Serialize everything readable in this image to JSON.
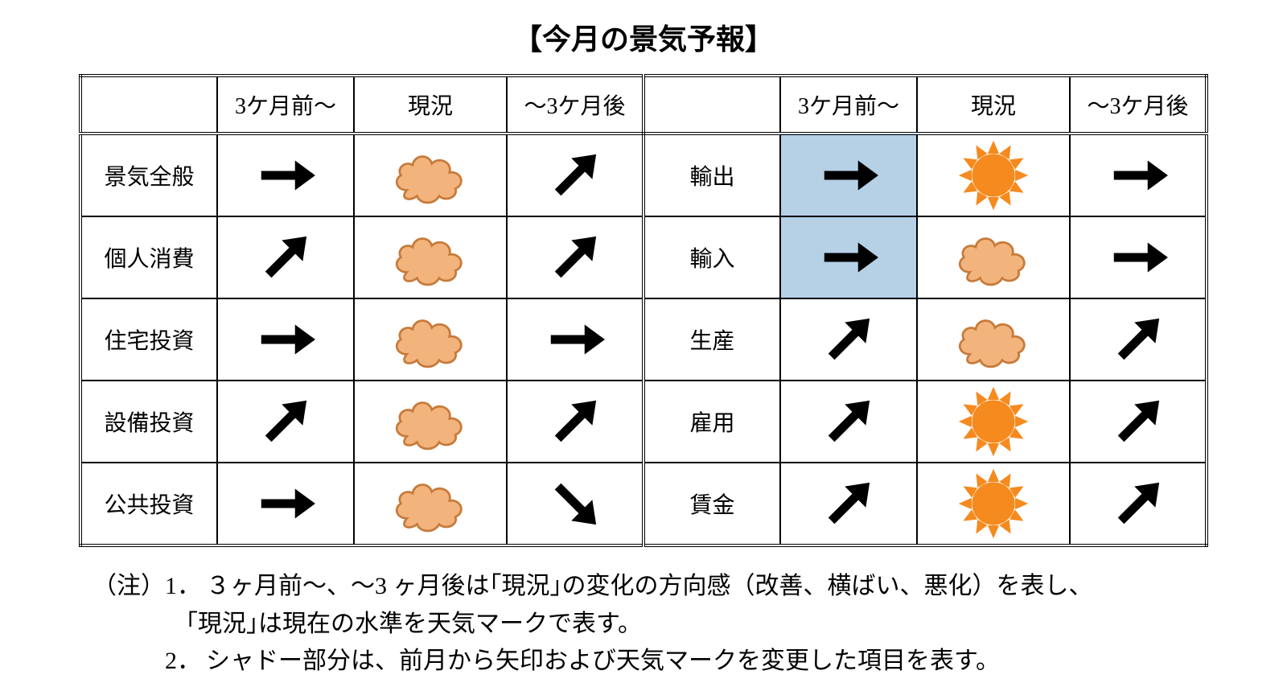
{
  "title": "【今月の景気予報】",
  "columns": {
    "past": "3ケ月前～",
    "now": "現況",
    "future": "～3ケ月後"
  },
  "colors": {
    "highlight_bg": "#b6d0e6",
    "arrow": "#000000",
    "cloud_fill": "#f3b37c",
    "cloud_stroke": "#c77a3a",
    "sun_fill": "#f58a1f",
    "sun_stroke": "#f58a1f",
    "border": "#000000",
    "background": "#ffffff"
  },
  "rows_left": [
    {
      "label": "景気全般",
      "past": {
        "icon": "arrow-flat"
      },
      "now": {
        "icon": "cloud"
      },
      "future": {
        "icon": "arrow-up"
      }
    },
    {
      "label": "個人消費",
      "past": {
        "icon": "arrow-up"
      },
      "now": {
        "icon": "cloud"
      },
      "future": {
        "icon": "arrow-up"
      }
    },
    {
      "label": "住宅投資",
      "past": {
        "icon": "arrow-flat"
      },
      "now": {
        "icon": "cloud"
      },
      "future": {
        "icon": "arrow-flat"
      }
    },
    {
      "label": "設備投資",
      "past": {
        "icon": "arrow-up"
      },
      "now": {
        "icon": "cloud"
      },
      "future": {
        "icon": "arrow-up"
      }
    },
    {
      "label": "公共投資",
      "past": {
        "icon": "arrow-flat"
      },
      "now": {
        "icon": "cloud"
      },
      "future": {
        "icon": "arrow-down"
      }
    }
  ],
  "rows_right": [
    {
      "label": "輸出",
      "past": {
        "icon": "arrow-flat",
        "highlight": true
      },
      "now": {
        "icon": "sun"
      },
      "future": {
        "icon": "arrow-flat"
      }
    },
    {
      "label": "輸入",
      "past": {
        "icon": "arrow-flat",
        "highlight": true
      },
      "now": {
        "icon": "cloud"
      },
      "future": {
        "icon": "arrow-flat"
      }
    },
    {
      "label": "生産",
      "past": {
        "icon": "arrow-up"
      },
      "now": {
        "icon": "cloud"
      },
      "future": {
        "icon": "arrow-up"
      }
    },
    {
      "label": "雇用",
      "past": {
        "icon": "arrow-up"
      },
      "now": {
        "icon": "sun"
      },
      "future": {
        "icon": "arrow-up"
      }
    },
    {
      "label": "賃金",
      "past": {
        "icon": "arrow-up"
      },
      "now": {
        "icon": "sun"
      },
      "future": {
        "icon": "arrow-up"
      }
    }
  ],
  "notes": {
    "label": "（注）",
    "items": [
      {
        "num": "1．",
        "lines": [
          "３ヶ月前～、～3 ヶ月後は｢現況｣の変化の方向感（改善、横ばい、悪化）を表し、",
          "｢現況｣は現在の水準を天気マークで表す。"
        ]
      },
      {
        "num": "2．",
        "lines": [
          "シャドー部分は、前月から矢印および天気マークを変更した項目を表す。"
        ]
      }
    ]
  }
}
